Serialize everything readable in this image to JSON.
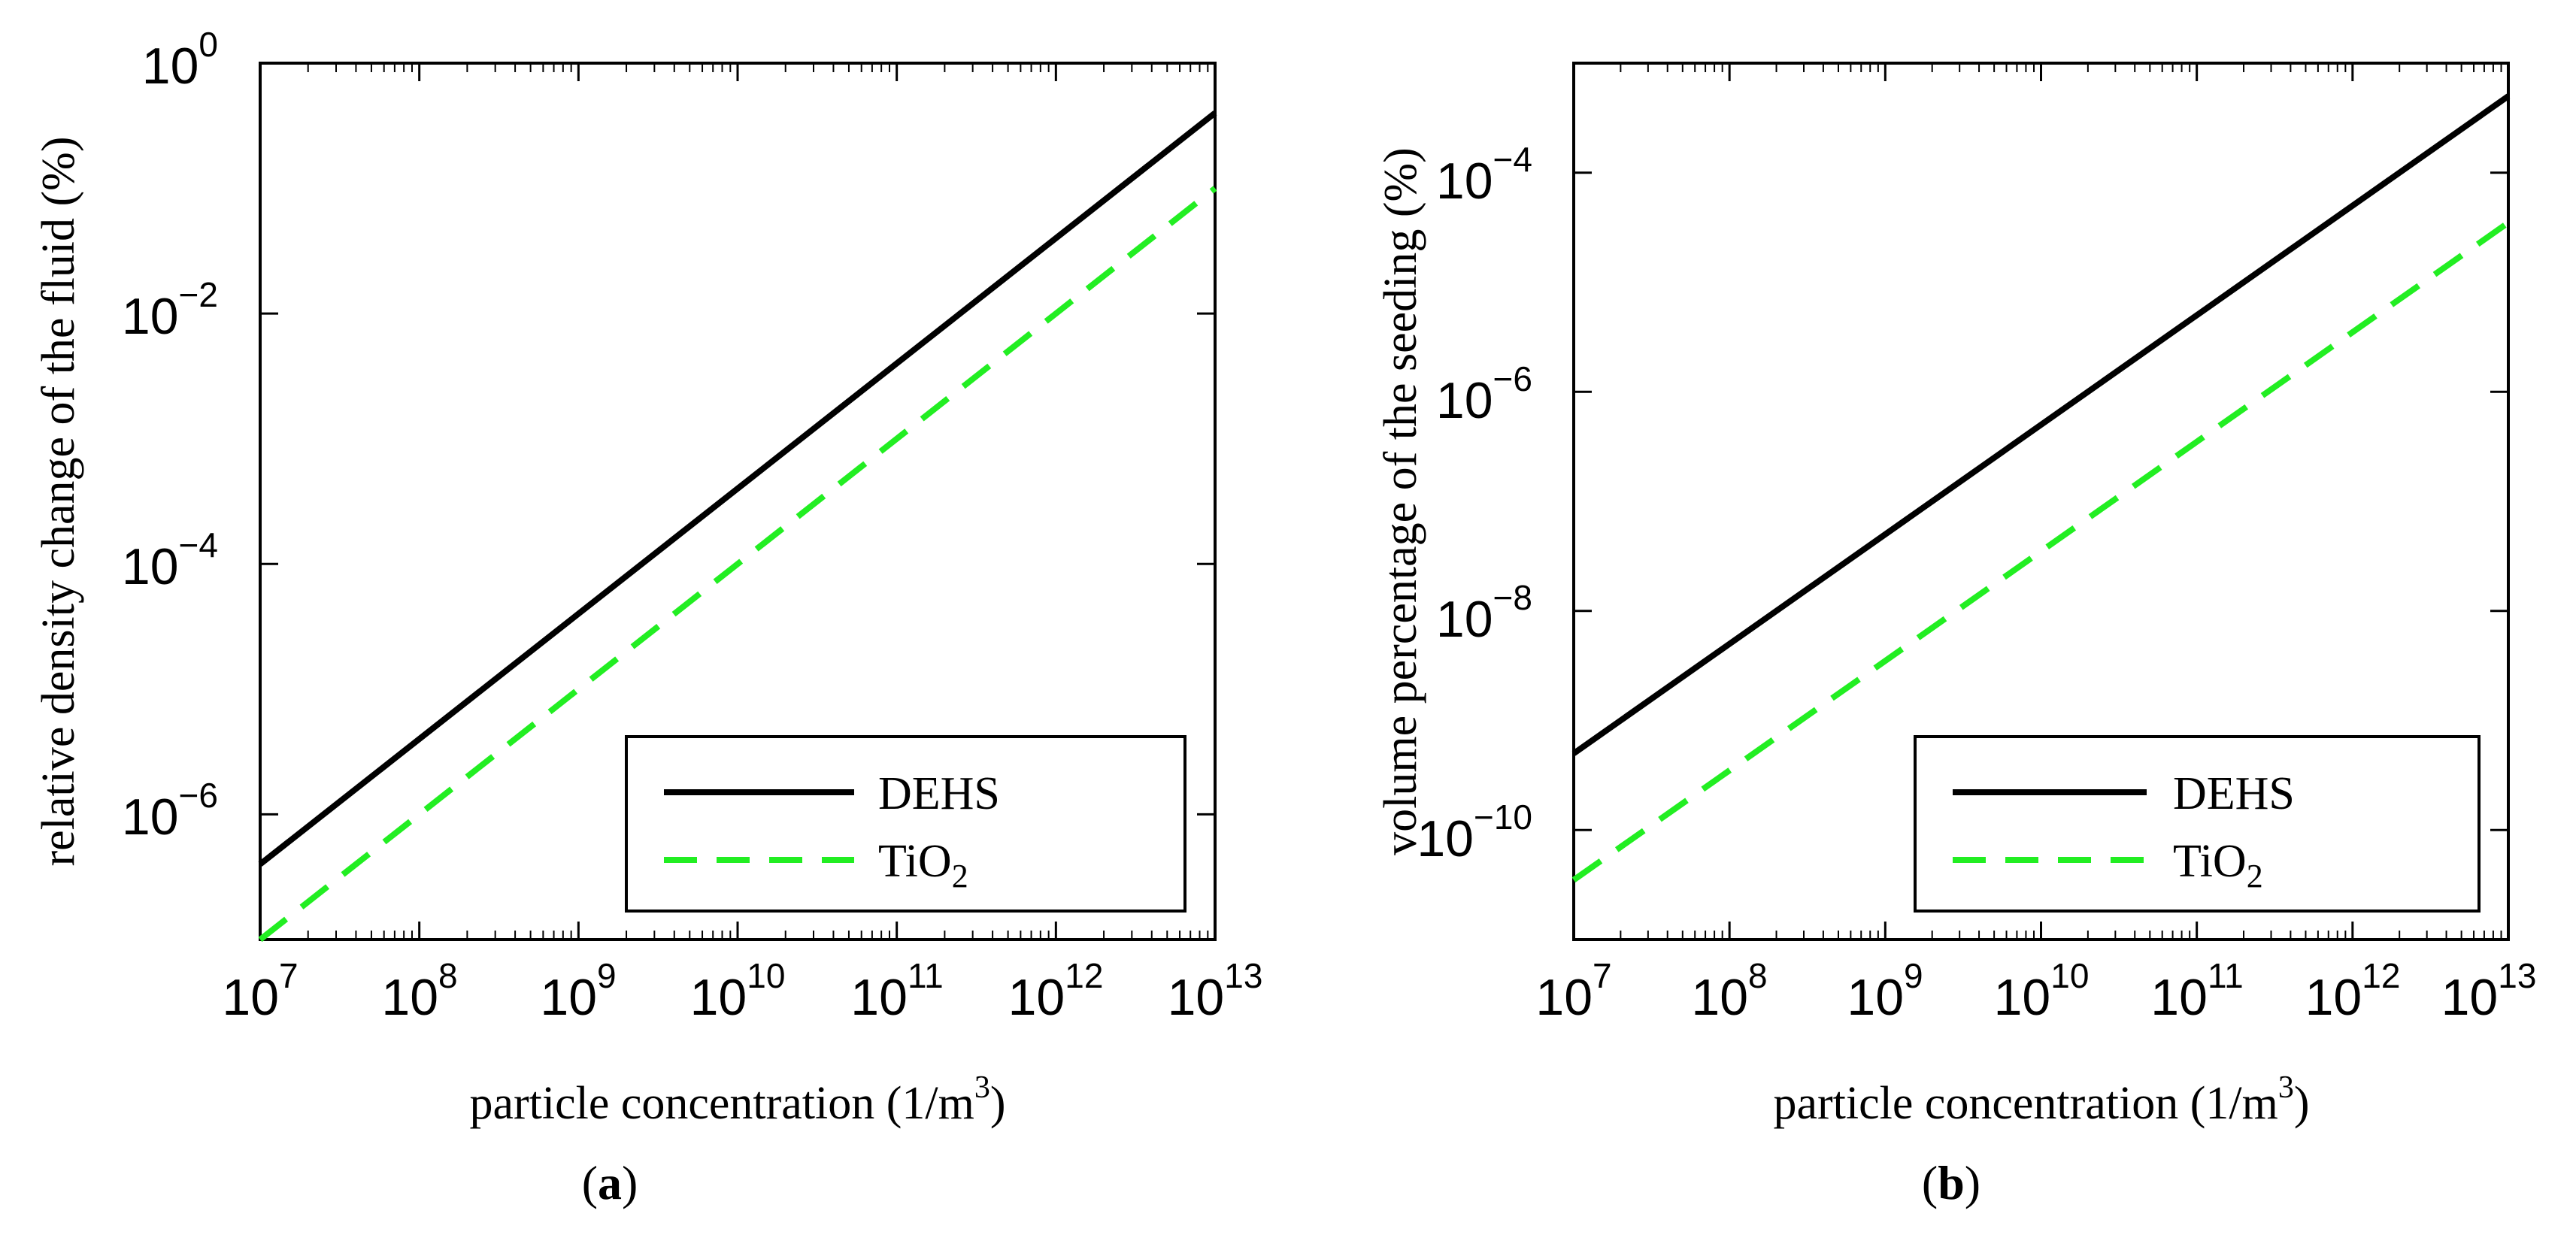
{
  "colors": {
    "axes": "#000000",
    "background": "#ffffff",
    "DEHS": "#000000",
    "TiO2": "#22ee22"
  },
  "chart_data": [
    {
      "type": "line",
      "panel": "a",
      "panel_label": {
        "open": "(",
        "letter": "a",
        "close": ")"
      },
      "title": "",
      "xlabel": {
        "text": "particle concentration (1/m",
        "sup": "3",
        "close": ")"
      },
      "ylabel": "relative density change of the fluid (%)",
      "xscale": "log",
      "yscale": "log",
      "xlim_exp": [
        7,
        13
      ],
      "ylim_exp": [
        -7,
        0
      ],
      "x_ticks": [
        {
          "base": "10",
          "exp": "7"
        },
        {
          "base": "10",
          "exp": "8"
        },
        {
          "base": "10",
          "exp": "9"
        },
        {
          "base": "10",
          "exp": "10"
        },
        {
          "base": "10",
          "exp": "11"
        },
        {
          "base": "10",
          "exp": "12"
        },
        {
          "base": "10",
          "exp": "13"
        }
      ],
      "y_ticks": [
        {
          "base": "10",
          "exp": "−6"
        },
        {
          "base": "10",
          "exp": "−4"
        },
        {
          "base": "10",
          "exp": "−2"
        },
        {
          "base": "10",
          "exp": "0"
        }
      ],
      "legend": {
        "location": "bottom-right"
      },
      "series": [
        {
          "name": "DEHS",
          "label": "DEHS",
          "label_sub": "",
          "style": "solid",
          "x": [
            10000000.0,
            10000000000000.0
          ],
          "y": [
            4e-07,
            0.4
          ]
        },
        {
          "name": "TiO2",
          "label": "TiO",
          "label_sub": "2",
          "style": "dashed",
          "x": [
            10000000.0,
            10000000000000.0
          ],
          "y": [
            1e-07,
            0.1
          ]
        }
      ]
    },
    {
      "type": "line",
      "panel": "b",
      "panel_label": {
        "open": "(",
        "letter": "b",
        "close": ")"
      },
      "title": "",
      "xlabel": {
        "text": "particle concentration (1/m",
        "sup": "3",
        "close": ")"
      },
      "ylabel": "volume percentage of the seeding (%)",
      "xscale": "log",
      "yscale": "log",
      "xlim_exp": [
        7,
        13
      ],
      "ylim_exp": [
        -11,
        -3
      ],
      "x_ticks": [
        {
          "base": "10",
          "exp": "7"
        },
        {
          "base": "10",
          "exp": "8"
        },
        {
          "base": "10",
          "exp": "9"
        },
        {
          "base": "10",
          "exp": "10"
        },
        {
          "base": "10",
          "exp": "11"
        },
        {
          "base": "10",
          "exp": "12"
        },
        {
          "base": "10",
          "exp": "13"
        }
      ],
      "y_ticks": [
        {
          "base": "10",
          "exp": "−10"
        },
        {
          "base": "10",
          "exp": "−8"
        },
        {
          "base": "10",
          "exp": "−6"
        },
        {
          "base": "10",
          "exp": "−4"
        }
      ],
      "legend": {
        "location": "bottom-right"
      },
      "series": [
        {
          "name": "DEHS",
          "label": "DEHS",
          "label_sub": "",
          "style": "solid",
          "x": [
            10000000.0,
            10000000000000.0
          ],
          "y": [
            5e-10,
            0.0005
          ]
        },
        {
          "name": "TiO2",
          "label": "TiO",
          "label_sub": "2",
          "style": "dashed",
          "x": [
            10000000.0,
            10000000000000.0
          ],
          "y": [
            3.5e-11,
            3.5e-05
          ]
        }
      ]
    }
  ]
}
